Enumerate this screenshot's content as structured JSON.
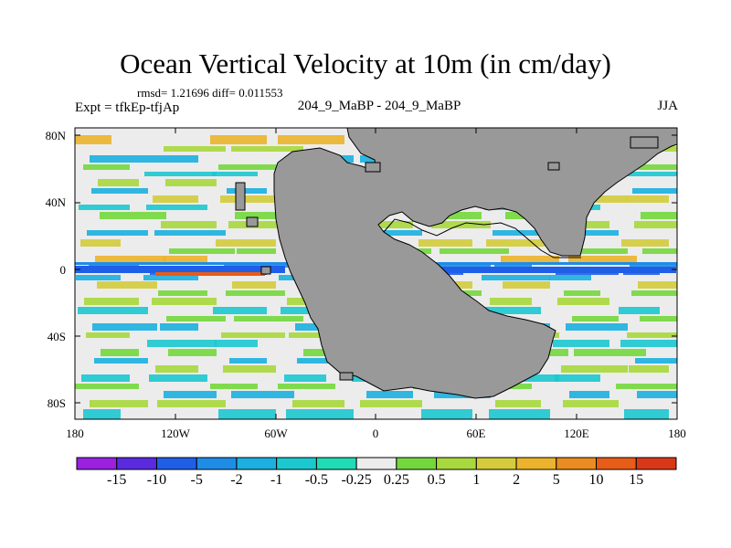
{
  "title": "Ocean Vertical Velocity at 10m (in cm/day)",
  "stats": "rmsd= 1.21696 diff= 0.011553",
  "experiment": "Expt = tfkEp-tfjAp",
  "runs": "204_9_MaBP - 204_9_MaBP",
  "season": "JJA",
  "lat_labels": [
    "80N",
    "40N",
    "0",
    "40S",
    "80S"
  ],
  "lon_labels": [
    "180",
    "120W",
    "60W",
    "0",
    "60E",
    "120E",
    "180"
  ],
  "colorbar": {
    "labels": [
      "-15",
      "-10",
      "-5",
      "-2",
      "-1",
      "-0.5",
      "-0.25",
      "0.25",
      "0.5",
      "1",
      "2",
      "5",
      "10",
      "15"
    ],
    "colors": [
      "#9b20e0",
      "#5a2ae0",
      "#1f5fe8",
      "#1f8ce8",
      "#1bb0e0",
      "#1cc8d0",
      "#20dcb4",
      "#ececec",
      "#74d83c",
      "#a8d83c",
      "#d4cc3c",
      "#ecb42c",
      "#ec8c20",
      "#e85c18",
      "#d83818"
    ]
  },
  "map_colors": {
    "land": "#999999",
    "neutral": "#ececec"
  }
}
